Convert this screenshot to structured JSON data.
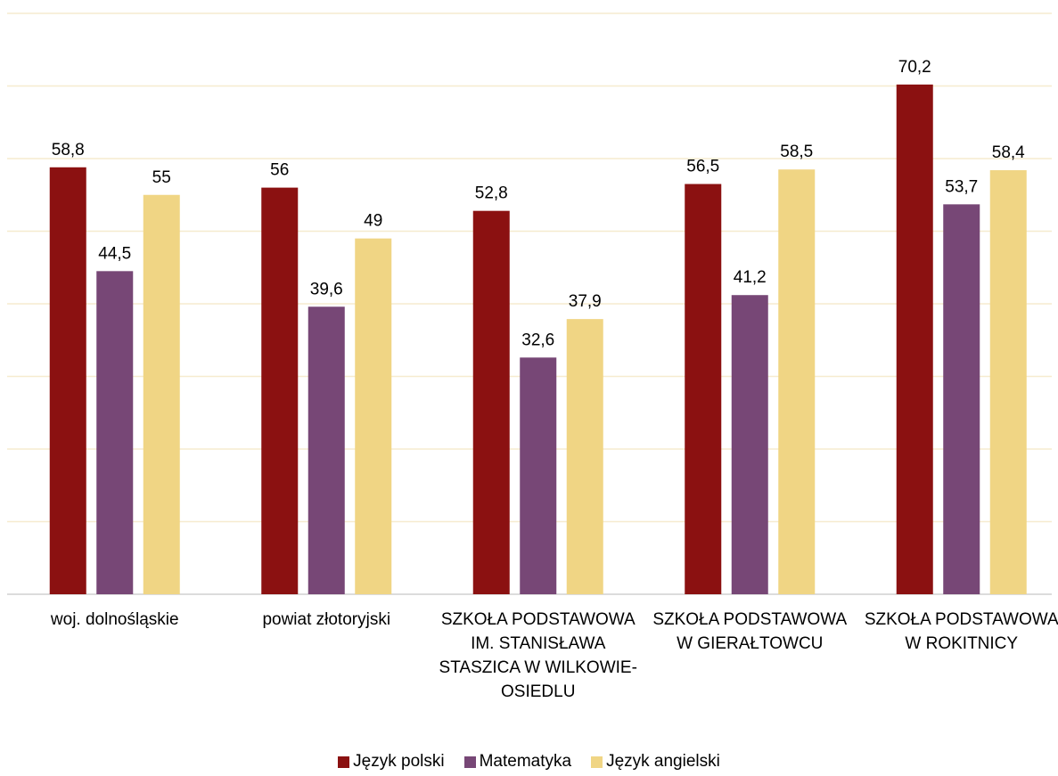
{
  "chart_data": {
    "type": "bar",
    "categories": [
      "woj. dolnośląskie",
      "powiat złotoryjski",
      "SZKOŁA PODSTAWOWA IM. STANISŁAWA STASZICA W WILKOWIE-OSIEDLU",
      "SZKOŁA PODSTAWOWA W GIERAŁTOWCU",
      "SZKOŁA PODSTAWOWA W ROKITNICY"
    ],
    "series": [
      {
        "name": "Język polski",
        "color": "#8b1111",
        "values": [
          58.8,
          56,
          52.8,
          56.5,
          70.2
        ],
        "value_labels": [
          "58,8",
          "56",
          "52,8",
          "56,5",
          "70,2"
        ]
      },
      {
        "name": "Matematyka",
        "color": "#774776",
        "values": [
          44.5,
          39.6,
          32.6,
          41.2,
          53.7
        ],
        "value_labels": [
          "44,5",
          "39,6",
          "32,6",
          "41,2",
          "53,7"
        ]
      },
      {
        "name": "Język angielski",
        "color": "#f0d584",
        "values": [
          55,
          49,
          37.9,
          58.5,
          58.4
        ],
        "value_labels": [
          "55",
          "49",
          "37,9",
          "58,5",
          "58,4"
        ]
      }
    ],
    "ylim": [
      0,
      80
    ],
    "yticks": [
      0,
      10,
      20,
      30,
      40,
      50,
      60,
      70,
      80
    ],
    "grid": true,
    "legend": "bottom"
  }
}
